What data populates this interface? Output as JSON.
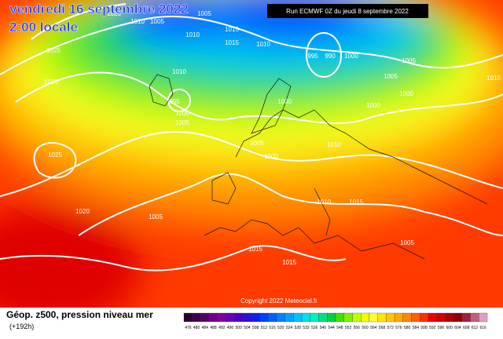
{
  "header": {
    "title": "vendredi 16 septembre 2022",
    "subtitle": "2:00 locale",
    "run": "Run ECMWF 0Z du jeudi 8 septembre 2022"
  },
  "map": {
    "isobar_labels": [
      1020,
      1010,
      1005,
      1005,
      1015,
      1010,
      1015,
      1010,
      1025,
      1010,
      1010,
      995,
      1000,
      1005,
      995,
      990,
      1000,
      1005,
      1005,
      1000,
      1000,
      1000,
      1005,
      1000,
      1010,
      1025,
      1020,
      1005,
      1010,
      1015,
      1015,
      1015,
      1005,
      1010
    ],
    "copyright": "Copyright 2022 Meteociel.fr"
  },
  "footer": {
    "title": "Géop. z500, pression niveau mer",
    "lead": "(+192h)",
    "scale": {
      "labels": [
        476,
        480,
        484,
        488,
        492,
        496,
        500,
        504,
        508,
        512,
        516,
        520,
        524,
        528,
        532,
        536,
        540,
        544,
        548,
        552,
        556,
        560,
        564,
        568,
        572,
        576,
        580,
        584,
        588,
        592,
        596,
        600,
        604,
        608,
        612,
        616
      ],
      "colors": [
        "#2a0033",
        "#3d0050",
        "#55006b",
        "#6d0086",
        "#8200a0",
        "#6b00b8",
        "#4a00c8",
        "#2a10d8",
        "#1020e8",
        "#0040ff",
        "#0060ff",
        "#0080ff",
        "#00a0ff",
        "#00c0ff",
        "#00e0f0",
        "#00f0c0",
        "#00e080",
        "#00d040",
        "#40e000",
        "#80f000",
        "#c0ff00",
        "#f0ff00",
        "#ffff40",
        "#ffe800",
        "#ffc800",
        "#ffa800",
        "#ff8800",
        "#ff6000",
        "#ff3000",
        "#f00000",
        "#d00000",
        "#b00000",
        "#900000",
        "#a02040",
        "#c06080",
        "#e0a0c0"
      ]
    }
  }
}
